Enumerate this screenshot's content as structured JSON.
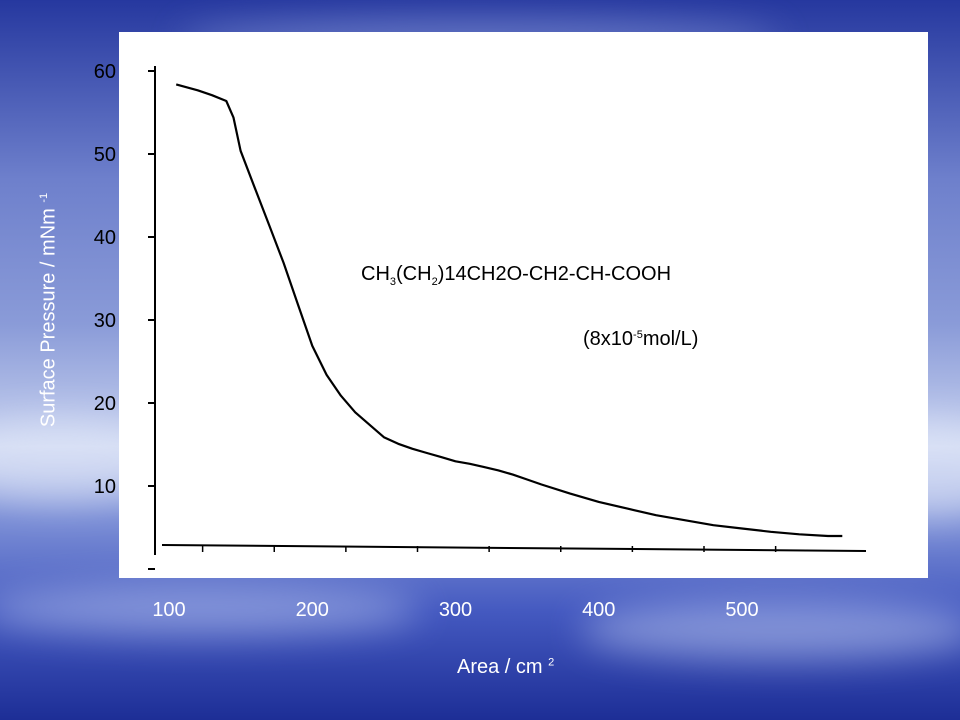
{
  "background": {
    "colors": [
      "#2a3da6",
      "#6f82d0",
      "#c9d3ef",
      "#4a5cbf",
      "#1e2f98"
    ]
  },
  "chart_data": {
    "type": "line",
    "title": "",
    "xlabel": "Area / cm",
    "xlabel_sup": "2",
    "ylabel": "Surface Pressure / mNm",
    "ylabel_sup": "-1",
    "xlim": [
      90,
      580
    ],
    "ylim": [
      0,
      63
    ],
    "x_ticks": [
      "100",
      "200",
      "300",
      "400",
      "500"
    ],
    "y_ticks": [
      "10",
      "20",
      "30",
      "40",
      "50",
      "60"
    ],
    "annotation_formula": {
      "parts": [
        "CH",
        "3",
        "(CH",
        "2",
        ")14CH2O-CH2-CH-COOH"
      ]
    },
    "annotation_concentration": {
      "prefix": "(8x10",
      "exponent": "-5",
      "suffix": "mol/L)"
    },
    "series": [
      {
        "color": "#000000",
        "x": [
          105,
          120,
          130,
          140,
          145,
          150,
          160,
          170,
          180,
          190,
          200,
          210,
          220,
          230,
          240,
          250,
          260,
          270,
          280,
          290,
          300,
          310,
          320,
          330,
          340,
          350,
          360,
          380,
          400,
          420,
          440,
          460,
          480,
          500,
          520,
          540,
          560,
          570
        ],
        "y": [
          58.5,
          57.8,
          57.2,
          56.5,
          54.5,
          50.5,
          46.0,
          41.5,
          37.0,
          32.0,
          27.0,
          23.5,
          21.0,
          19.0,
          17.5,
          16.0,
          15.2,
          14.6,
          14.1,
          13.6,
          13.1,
          12.8,
          12.4,
          12.0,
          11.5,
          10.9,
          10.3,
          9.2,
          8.2,
          7.4,
          6.6,
          6.0,
          5.4,
          5.0,
          4.6,
          4.3,
          4.1,
          4.1
        ]
      }
    ]
  }
}
